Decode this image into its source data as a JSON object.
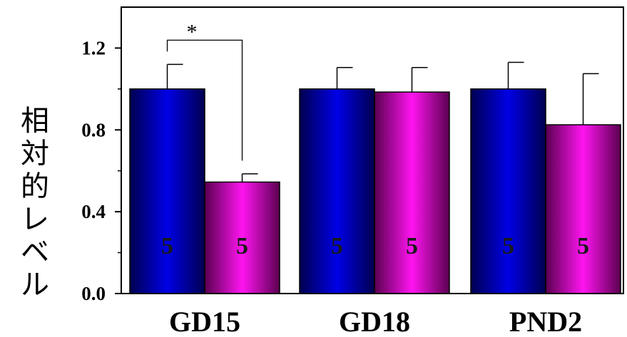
{
  "chart_data": {
    "type": "bar",
    "title": "",
    "xlabel": "",
    "ylabel": "相対的レベル",
    "ylim": [
      0.0,
      1.4
    ],
    "yticks": [
      0.0,
      0.4,
      0.8,
      1.2
    ],
    "ytick_labels": [
      "0.0",
      "0.4",
      "0.8",
      "1.2"
    ],
    "minor_yticks": [
      0.2,
      0.6,
      1.0
    ],
    "categories": [
      "GD15",
      "GD18",
      "PND2"
    ],
    "grid": false,
    "legend": "none",
    "series": [
      {
        "color_dark": "#000050",
        "color_mid": "#0000e6",
        "values": [
          1.0,
          1.0,
          1.0
        ],
        "errors": [
          0.12,
          0.105,
          0.13
        ],
        "n_labels": [
          "5",
          "5",
          "5"
        ]
      },
      {
        "color_dark": "#5a0050",
        "color_mid": "#ff14f0",
        "values": [
          0.545,
          0.985,
          0.825
        ],
        "errors": [
          0.04,
          0.12,
          0.25
        ],
        "n_labels": [
          "5",
          "5",
          "5"
        ]
      }
    ],
    "annotations": [
      {
        "text": "*",
        "category": "GD15",
        "between_series": [
          0,
          1
        ]
      }
    ]
  }
}
